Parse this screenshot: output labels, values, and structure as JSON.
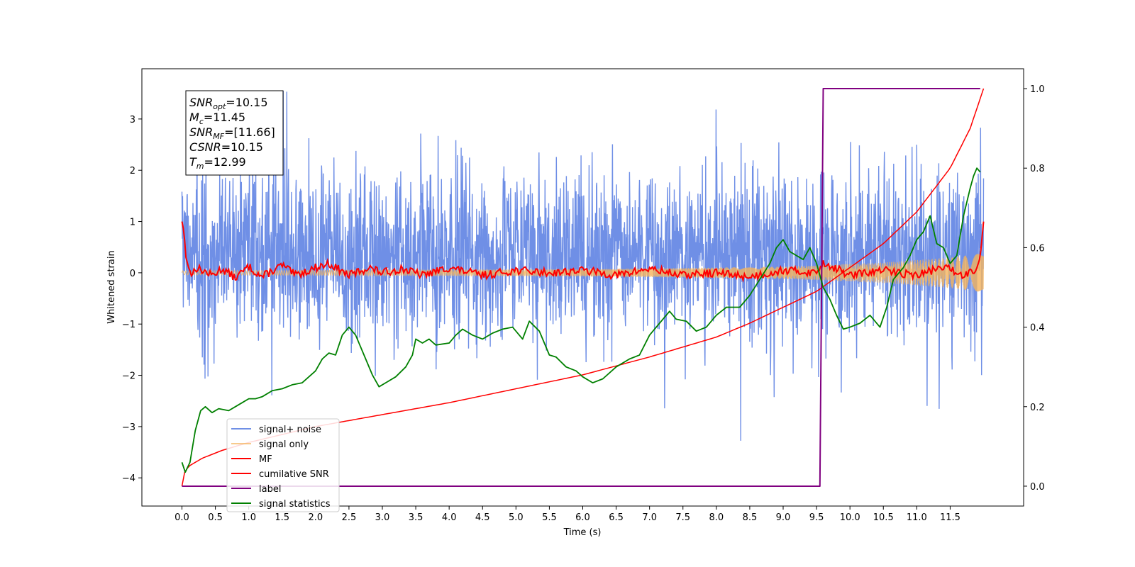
{
  "chart_data": {
    "type": "line",
    "xlabel": "Time (s)",
    "ylabel": "Whitened strain",
    "xlim": [
      -0.6,
      12.6
    ],
    "ylim": [
      -4.55,
      3.98
    ],
    "y2lim": [
      -0.05,
      1.05
    ],
    "x_ticks": [
      0.0,
      0.5,
      1.0,
      1.5,
      2.0,
      2.5,
      3.0,
      3.5,
      4.0,
      4.5,
      5.0,
      5.5,
      6.0,
      6.5,
      7.0,
      7.5,
      8.0,
      8.5,
      9.0,
      9.5,
      10.0,
      10.5,
      11.0,
      11.5
    ],
    "x_tick_labels": [
      "0.0",
      "0.5",
      "1.0",
      "1.5",
      "2.0",
      "2.5",
      "3.0",
      "3.5",
      "4.0",
      "4.5",
      "5.0",
      "5.5",
      "6.0",
      "6.5",
      "7.0",
      "7.5",
      "8.0",
      "8.5",
      "9.0",
      "9.5",
      "10.0",
      "10.5",
      "11.0",
      "11.5"
    ],
    "y_ticks": [
      3,
      2,
      1,
      0,
      -1,
      -2,
      -3,
      -4
    ],
    "y_tick_labels": [
      "3",
      "2",
      "1",
      "0",
      "−1",
      "−2",
      "−3",
      "−4"
    ],
    "y2_ticks": [
      1.0,
      0.8,
      0.6,
      0.4,
      0.2,
      0.0
    ],
    "y2_tick_labels": [
      "1.0",
      "0.8",
      "0.6",
      "0.4",
      "0.2",
      "0.0"
    ],
    "grid": false,
    "legend_position": "lower-left",
    "series": [
      {
        "name": "signal+ noise",
        "axis": "left",
        "color": "#6f8fe6",
        "description_visible": "dense whitened noise, roughly between -2.5 and 3.5",
        "amplitude_hint": 0.85,
        "seed": 7
      },
      {
        "name": "signal only",
        "axis": "left",
        "color": "#f5b45c",
        "chirp_amplitude": {
          "x": [
            0.0,
            6.0,
            9.0,
            10.5,
            11.5,
            12.0
          ],
          "y": [
            0.04,
            0.07,
            0.12,
            0.2,
            0.3,
            0.38
          ]
        }
      },
      {
        "name": "MF",
        "axis": "left",
        "color": "#ff0000",
        "x": [
          0.0,
          0.03,
          0.06,
          0.1,
          0.15,
          0.2,
          0.3,
          0.45,
          0.6,
          0.8,
          1.0,
          1.2,
          1.5,
          1.7,
          2.0,
          2.2,
          2.5,
          2.8,
          3.0,
          3.3,
          3.6,
          4.0,
          4.5,
          5.0,
          5.5,
          6.0,
          6.5,
          7.0,
          7.5,
          8.0,
          8.5,
          9.0,
          9.5,
          9.6,
          10.0,
          10.5,
          11.0,
          11.4,
          11.7,
          11.9,
          11.95,
          12.0
        ],
        "y": [
          1.0,
          0.8,
          0.3,
          0.1,
          -0.05,
          0.1,
          0.05,
          -0.05,
          0.08,
          -0.1,
          0.12,
          -0.08,
          0.15,
          -0.05,
          0.1,
          0.18,
          -0.05,
          0.1,
          0.0,
          0.08,
          -0.05,
          0.1,
          -0.05,
          0.05,
          0.0,
          0.05,
          -0.05,
          0.08,
          -0.05,
          0.0,
          -0.08,
          0.05,
          0.0,
          0.2,
          -0.05,
          0.05,
          -0.05,
          0.12,
          -0.05,
          0.1,
          0.3,
          1.0
        ]
      },
      {
        "name": "cumilative SNR",
        "axis": "right",
        "color": "#ff0000",
        "x": [
          0.0,
          0.02,
          0.1,
          0.3,
          0.6,
          1.0,
          2.0,
          3.0,
          4.0,
          5.0,
          6.0,
          7.0,
          8.0,
          8.5,
          9.0,
          9.5,
          10.0,
          10.5,
          11.0,
          11.5,
          11.8,
          12.0
        ],
        "y": [
          0.0,
          0.03,
          0.05,
          0.07,
          0.09,
          0.11,
          0.15,
          0.18,
          0.21,
          0.245,
          0.28,
          0.325,
          0.375,
          0.41,
          0.45,
          0.49,
          0.55,
          0.61,
          0.69,
          0.8,
          0.9,
          1.0
        ]
      },
      {
        "name": "label",
        "axis": "right",
        "color": "#800080",
        "x": [
          0.0,
          9.55,
          9.6,
          11.95
        ],
        "y": [
          0.0,
          0.0,
          1.0,
          1.0
        ]
      },
      {
        "name": "signal statistics",
        "axis": "right",
        "color": "#008000",
        "x": [
          0.0,
          0.05,
          0.12,
          0.2,
          0.28,
          0.35,
          0.45,
          0.55,
          0.7,
          0.8,
          0.9,
          1.0,
          1.1,
          1.2,
          1.35,
          1.5,
          1.65,
          1.8,
          2.0,
          2.1,
          2.2,
          2.3,
          2.4,
          2.5,
          2.6,
          2.75,
          2.85,
          2.95,
          3.05,
          3.2,
          3.35,
          3.45,
          3.5,
          3.6,
          3.7,
          3.8,
          4.0,
          4.1,
          4.2,
          4.35,
          4.5,
          4.65,
          4.8,
          4.95,
          5.1,
          5.2,
          5.35,
          5.5,
          5.6,
          5.75,
          5.9,
          6.0,
          6.15,
          6.3,
          6.5,
          6.7,
          6.85,
          7.0,
          7.15,
          7.3,
          7.4,
          7.55,
          7.7,
          7.85,
          8.0,
          8.15,
          8.35,
          8.5,
          8.65,
          8.8,
          8.9,
          9.0,
          9.1,
          9.2,
          9.3,
          9.4,
          9.5,
          9.6,
          9.7,
          9.8,
          9.9,
          10.0,
          10.15,
          10.3,
          10.45,
          10.55,
          10.65,
          10.8,
          10.9,
          11.0,
          11.1,
          11.2,
          11.3,
          11.4,
          11.5,
          11.6,
          11.7,
          11.8,
          11.85,
          11.9,
          11.95
        ],
        "y": [
          0.06,
          0.035,
          0.06,
          0.14,
          0.19,
          0.2,
          0.185,
          0.195,
          0.19,
          0.2,
          0.21,
          0.22,
          0.22,
          0.225,
          0.24,
          0.245,
          0.255,
          0.26,
          0.29,
          0.32,
          0.335,
          0.33,
          0.38,
          0.4,
          0.38,
          0.32,
          0.28,
          0.25,
          0.26,
          0.275,
          0.3,
          0.33,
          0.37,
          0.36,
          0.37,
          0.355,
          0.36,
          0.38,
          0.395,
          0.38,
          0.37,
          0.385,
          0.395,
          0.4,
          0.37,
          0.415,
          0.39,
          0.33,
          0.325,
          0.3,
          0.29,
          0.275,
          0.26,
          0.27,
          0.3,
          0.32,
          0.33,
          0.38,
          0.41,
          0.44,
          0.42,
          0.415,
          0.39,
          0.4,
          0.43,
          0.45,
          0.45,
          0.48,
          0.52,
          0.56,
          0.6,
          0.62,
          0.59,
          0.58,
          0.57,
          0.6,
          0.56,
          0.5,
          0.47,
          0.43,
          0.395,
          0.4,
          0.41,
          0.43,
          0.4,
          0.45,
          0.52,
          0.55,
          0.58,
          0.62,
          0.64,
          0.68,
          0.61,
          0.6,
          0.56,
          0.58,
          0.68,
          0.75,
          0.78,
          0.8,
          0.79
        ]
      }
    ],
    "annotation": {
      "lines": [
        {
          "base": "SNR",
          "sub": "opt",
          "value": "=10.15"
        },
        {
          "base": "M",
          "sub": "c",
          "value": "=11.45"
        },
        {
          "base": "SNR",
          "sub": "MF",
          "value": "=[11.66]"
        },
        {
          "base": "CSNR",
          "sub": "",
          "value": "=10.15"
        },
        {
          "base": "T",
          "sub": "m",
          "value": "=12.99"
        }
      ]
    }
  }
}
